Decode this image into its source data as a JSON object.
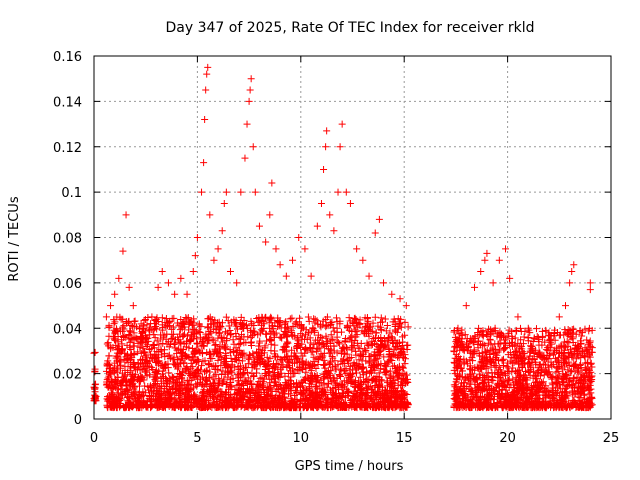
{
  "chart_data": {
    "type": "scatter",
    "title": "Day 347 of 2025, Rate Of TEC Index for receiver rkld",
    "xlabel": "GPS time / hours",
    "ylabel": "ROTI / TECUs",
    "xlim": [
      0,
      25
    ],
    "ylim": [
      0,
      0.16
    ],
    "x_ticks": [
      0,
      5,
      10,
      15,
      20,
      25
    ],
    "x_tick_labels": [
      "0",
      "5",
      "10",
      "15",
      "20",
      "25"
    ],
    "y_ticks": [
      0,
      0.02,
      0.04,
      0.06,
      0.08,
      0.1,
      0.12,
      0.14,
      0.16
    ],
    "y_tick_labels": [
      "0",
      "0.02",
      "0.04",
      "0.06",
      "0.08",
      "0.1",
      "0.12",
      "0.14",
      "0.16"
    ],
    "grid": true,
    "marker": "+",
    "color": "#ff0000",
    "series": [
      {
        "name": "ROTI",
        "data_gaps_hours": [
          [
            0.1,
            0.6
          ],
          [
            15.2,
            17.4
          ]
        ],
        "points": [
          [
            0.0,
            0.009
          ],
          [
            0.0,
            0.029
          ],
          [
            0.05,
            0.012
          ],
          [
            0.05,
            0.022
          ],
          [
            0.1,
            0.01
          ],
          [
            0.6,
            0.045
          ],
          [
            0.8,
            0.05
          ],
          [
            1.0,
            0.055
          ],
          [
            1.2,
            0.062
          ],
          [
            1.4,
            0.074
          ],
          [
            1.55,
            0.09
          ],
          [
            1.7,
            0.058
          ],
          [
            1.9,
            0.05
          ],
          [
            2.2,
            0.04
          ],
          [
            2.5,
            0.035
          ],
          [
            2.8,
            0.045
          ],
          [
            3.1,
            0.058
          ],
          [
            3.3,
            0.065
          ],
          [
            3.6,
            0.06
          ],
          [
            3.9,
            0.055
          ],
          [
            4.2,
            0.062
          ],
          [
            4.5,
            0.055
          ],
          [
            4.8,
            0.065
          ],
          [
            4.9,
            0.072
          ],
          [
            5.0,
            0.08
          ],
          [
            5.2,
            0.1
          ],
          [
            5.3,
            0.113
          ],
          [
            5.35,
            0.132
          ],
          [
            5.4,
            0.145
          ],
          [
            5.45,
            0.152
          ],
          [
            5.5,
            0.155
          ],
          [
            5.6,
            0.09
          ],
          [
            5.8,
            0.07
          ],
          [
            6.0,
            0.075
          ],
          [
            6.2,
            0.083
          ],
          [
            6.3,
            0.095
          ],
          [
            6.4,
            0.1
          ],
          [
            6.6,
            0.065
          ],
          [
            6.9,
            0.06
          ],
          [
            7.1,
            0.1
          ],
          [
            7.3,
            0.115
          ],
          [
            7.4,
            0.13
          ],
          [
            7.5,
            0.14
          ],
          [
            7.55,
            0.145
          ],
          [
            7.6,
            0.15
          ],
          [
            7.7,
            0.12
          ],
          [
            7.8,
            0.1
          ],
          [
            8.0,
            0.085
          ],
          [
            8.3,
            0.078
          ],
          [
            8.5,
            0.09
          ],
          [
            8.6,
            0.104
          ],
          [
            8.8,
            0.075
          ],
          [
            9.0,
            0.068
          ],
          [
            9.3,
            0.063
          ],
          [
            9.6,
            0.07
          ],
          [
            9.9,
            0.08
          ],
          [
            10.2,
            0.075
          ],
          [
            10.5,
            0.063
          ],
          [
            10.8,
            0.085
          ],
          [
            11.0,
            0.095
          ],
          [
            11.1,
            0.11
          ],
          [
            11.2,
            0.12
          ],
          [
            11.25,
            0.127
          ],
          [
            11.4,
            0.09
          ],
          [
            11.6,
            0.083
          ],
          [
            11.8,
            0.1
          ],
          [
            11.9,
            0.12
          ],
          [
            12.0,
            0.13
          ],
          [
            12.2,
            0.1
          ],
          [
            12.4,
            0.095
          ],
          [
            12.7,
            0.075
          ],
          [
            13.0,
            0.07
          ],
          [
            13.3,
            0.063
          ],
          [
            13.6,
            0.082
          ],
          [
            13.8,
            0.088
          ],
          [
            14.0,
            0.06
          ],
          [
            14.4,
            0.055
          ],
          [
            14.8,
            0.053
          ],
          [
            15.1,
            0.05
          ],
          [
            17.4,
            0.03
          ],
          [
            17.6,
            0.04
          ],
          [
            18.0,
            0.05
          ],
          [
            18.4,
            0.058
          ],
          [
            18.7,
            0.065
          ],
          [
            18.9,
            0.07
          ],
          [
            19.0,
            0.073
          ],
          [
            19.3,
            0.06
          ],
          [
            19.6,
            0.07
          ],
          [
            19.9,
            0.075
          ],
          [
            20.1,
            0.062
          ],
          [
            20.5,
            0.045
          ],
          [
            21.0,
            0.04
          ],
          [
            21.5,
            0.035
          ],
          [
            22.0,
            0.038
          ],
          [
            22.5,
            0.045
          ],
          [
            22.8,
            0.05
          ],
          [
            23.0,
            0.06
          ],
          [
            23.1,
            0.065
          ],
          [
            23.2,
            0.068
          ],
          [
            23.5,
            0.03
          ],
          [
            24.0,
            0.057
          ],
          [
            24.0,
            0.06
          ]
        ]
      }
    ],
    "background_band": {
      "description": "dense cloud of low-level observations",
      "segments": [
        {
          "x_range": [
            0.0,
            0.1
          ],
          "y_range": [
            0.008,
            0.03
          ]
        },
        {
          "x_range": [
            0.6,
            15.2
          ],
          "y_range": [
            0.005,
            0.045
          ]
        },
        {
          "x_range": [
            17.4,
            24.1
          ],
          "y_range": [
            0.005,
            0.04
          ]
        }
      ]
    }
  }
}
